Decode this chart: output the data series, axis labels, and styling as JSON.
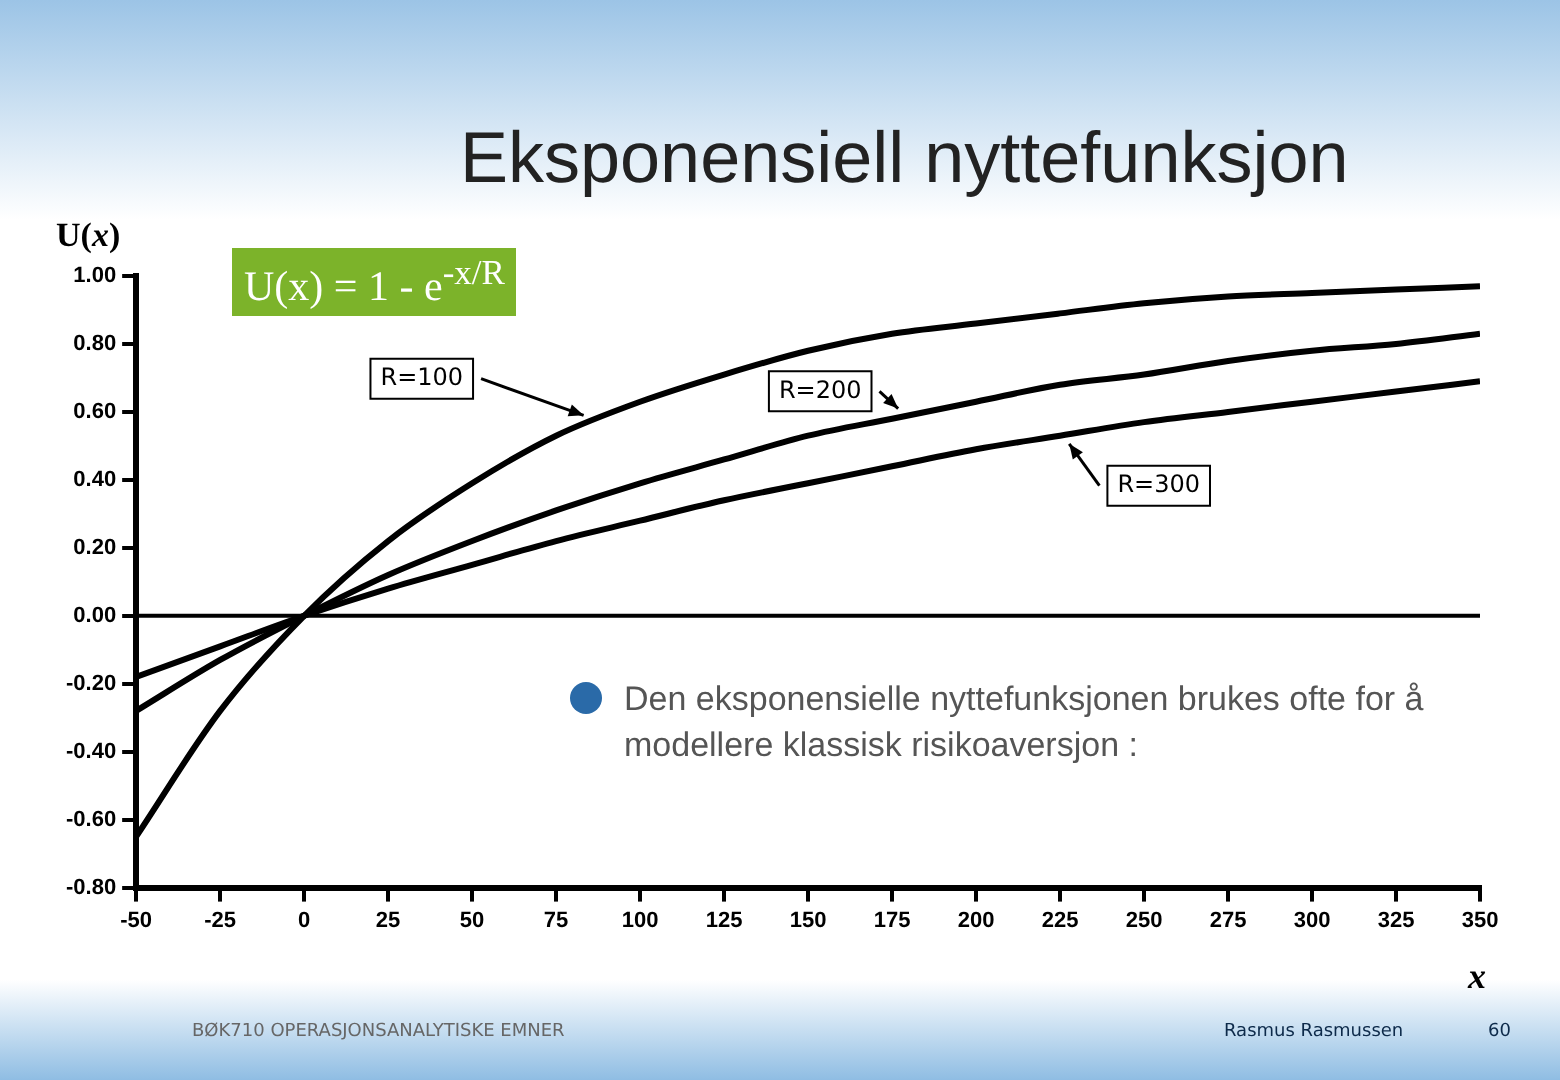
{
  "chart_data": {
    "type": "line",
    "title": "Eksponensiell nyttefunksjon",
    "xlabel": "x",
    "ylabel": "U(x)",
    "x": [
      -50,
      -25,
      0,
      25,
      50,
      75,
      100,
      125,
      150,
      175,
      200,
      225,
      250,
      275,
      300,
      325,
      350
    ],
    "series": [
      {
        "color": "#000000",
        "values": [
          -0.65,
          -0.28,
          0,
          0.22,
          0.39,
          0.53,
          0.63,
          0.71,
          0.78,
          0.83,
          0.86,
          0.89,
          0.92,
          0.94,
          0.95,
          0.96,
          0.97
        ]
      },
      {
        "color": "#000000",
        "values": [
          -0.28,
          -0.13,
          0,
          0.12,
          0.22,
          0.31,
          0.39,
          0.46,
          0.53,
          0.58,
          0.63,
          0.68,
          0.71,
          0.75,
          0.78,
          0.8,
          0.83
        ]
      },
      {
        "color": "#000000",
        "values": [
          -0.18,
          -0.09,
          0,
          0.08,
          0.15,
          0.22,
          0.28,
          0.34,
          0.39,
          0.44,
          0.49,
          0.53,
          0.57,
          0.6,
          0.63,
          0.66,
          0.69
        ]
      }
    ],
    "xlim": [
      -50,
      350
    ],
    "xticks": [
      -50,
      -25,
      0,
      25,
      50,
      75,
      100,
      125,
      150,
      175,
      200,
      225,
      250,
      275,
      300,
      325,
      350
    ],
    "ylim": [
      -0.8,
      1.0
    ],
    "yticks": [
      {
        "value": -0.8,
        "label": "-0.80"
      },
      {
        "value": -0.6,
        "label": "-0.60"
      },
      {
        "value": -0.4,
        "label": "-0.40"
      },
      {
        "value": -0.2,
        "label": "-0.20"
      },
      {
        "value": 0,
        "label": "0.00"
      },
      {
        "value": 0.2,
        "label": "0.20"
      },
      {
        "value": 0.4,
        "label": "0.40"
      },
      {
        "value": 0.6,
        "label": "0.60"
      },
      {
        "value": 0.8,
        "label": "0.80"
      },
      {
        "value": 1.0,
        "label": "1.00"
      }
    ],
    "ref_lines": [
      {
        "axis": "y",
        "value": 0,
        "color": "#000000"
      }
    ],
    "grid": false,
    "marker": "none",
    "line_style": "solid",
    "annotations": [
      {
        "text": "R=100",
        "x": 86,
        "y": 0.58
      },
      {
        "text": "R=200",
        "x": 179,
        "y": 0.59
      },
      {
        "text": "R=300",
        "x": 226,
        "y": 0.53
      },
      "U(x) = 1 - e$^{-x/R}$",
      "Den eksponensielle nyttefunksjonen brukes ofte for å modellere klassisk risikoaversjon :",
      "BØK710 OPERASJONSANALYTISKE EMNER",
      "Rasmus Rasmussen",
      "60"
    ]
  }
}
